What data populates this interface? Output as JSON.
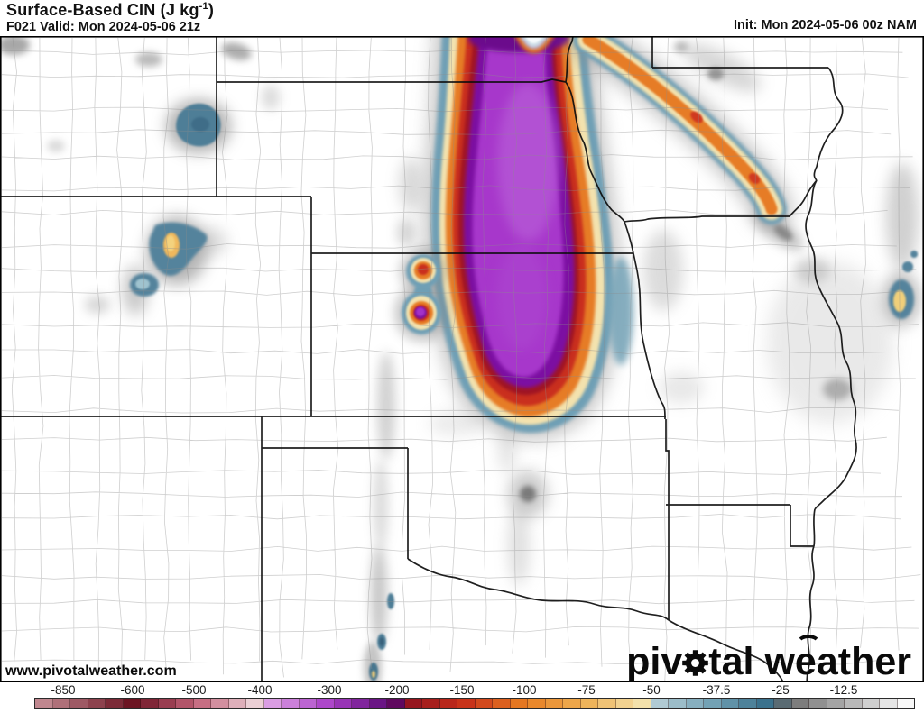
{
  "header": {
    "title_prefix": "Surface-Based CIN (J kg",
    "title_sup": "-1",
    "title_suffix": ")",
    "valid": "F021 Valid: Mon 2024-05-06 21z",
    "init": "Init: Mon 2024-05-06 00z NAM"
  },
  "map": {
    "watermark": "www.pivotalweather.com",
    "logo": {
      "p1": "piv",
      "p2": "tal",
      "p3": "w",
      "p4": "e",
      "p5": "ather"
    }
  },
  "legend_scale": {
    "parameter": "Surface-Based CIN",
    "unit": "J kg-1",
    "labels": [
      "-850",
      "-600",
      "-500",
      "-400",
      "-300",
      "-200",
      "-150",
      "-100",
      "-75",
      "-50",
      "-37.5",
      "-25",
      "-12.5"
    ],
    "gradient": [
      {
        "f": 0.0,
        "c": "#c8939a"
      },
      {
        "f": 0.112,
        "c": "#6a1220"
      },
      {
        "f": 0.181,
        "c": "#c06077"
      },
      {
        "f": 0.252,
        "c": "#ecd2d8"
      },
      {
        "f": 0.262,
        "c": "#e0a8e6"
      },
      {
        "f": 0.335,
        "c": "#a940c8"
      },
      {
        "f": 0.408,
        "c": "#55076f"
      },
      {
        "f": 0.418,
        "c": "#8c1120"
      },
      {
        "f": 0.486,
        "c": "#c62e1a"
      },
      {
        "f": 0.556,
        "c": "#e87e22"
      },
      {
        "f": 0.627,
        "c": "#eeb257"
      },
      {
        "f": 0.697,
        "c": "#f4e6b4"
      },
      {
        "f": 0.707,
        "c": "#b3ccd4"
      },
      {
        "f": 0.774,
        "c": "#6f9fb3"
      },
      {
        "f": 0.843,
        "c": "#2f6884"
      },
      {
        "f": 0.853,
        "c": "#6c6c6c"
      },
      {
        "f": 0.919,
        "c": "#adadad"
      },
      {
        "f": 0.985,
        "c": "#f5f5f5"
      },
      {
        "f": 1.0,
        "c": "#ffffff"
      }
    ]
  }
}
